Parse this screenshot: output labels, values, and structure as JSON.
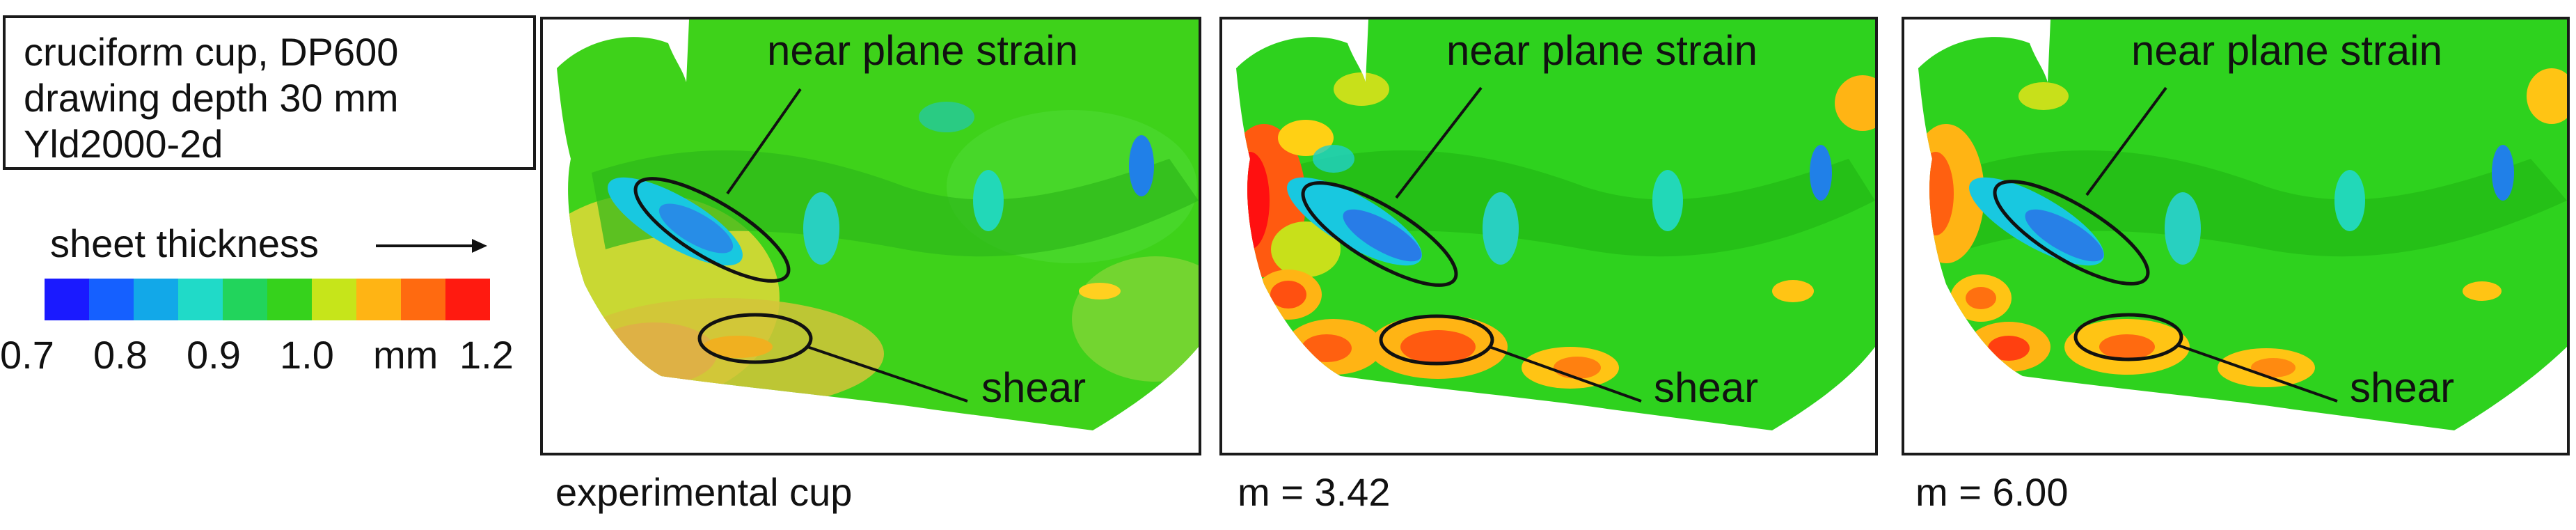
{
  "info_box": {
    "line1": "cruciform cup, DP600",
    "line2": "drawing depth 30 mm",
    "line3": "Yld2000-2d"
  },
  "legend": {
    "title": "sheet thickness",
    "colors": [
      "#1a1aff",
      "#1560ff",
      "#12a8e8",
      "#20dac8",
      "#22d45c",
      "#36d21c",
      "#c6e51a",
      "#ffb414",
      "#ff6a10",
      "#ff1a10"
    ],
    "ticks": [
      "0.7",
      "0.8",
      "0.9",
      "1.0",
      "mm",
      "1.2"
    ]
  },
  "panels": [
    {
      "caption": "experimental cup",
      "label_strain": "near plane strain",
      "label_shear": "shear"
    },
    {
      "caption": "m = 3.42",
      "label_strain": "near plane strain",
      "label_shear": "shear"
    },
    {
      "caption": "m = 6.00",
      "label_strain": "near plane strain",
      "label_shear": "shear"
    }
  ]
}
